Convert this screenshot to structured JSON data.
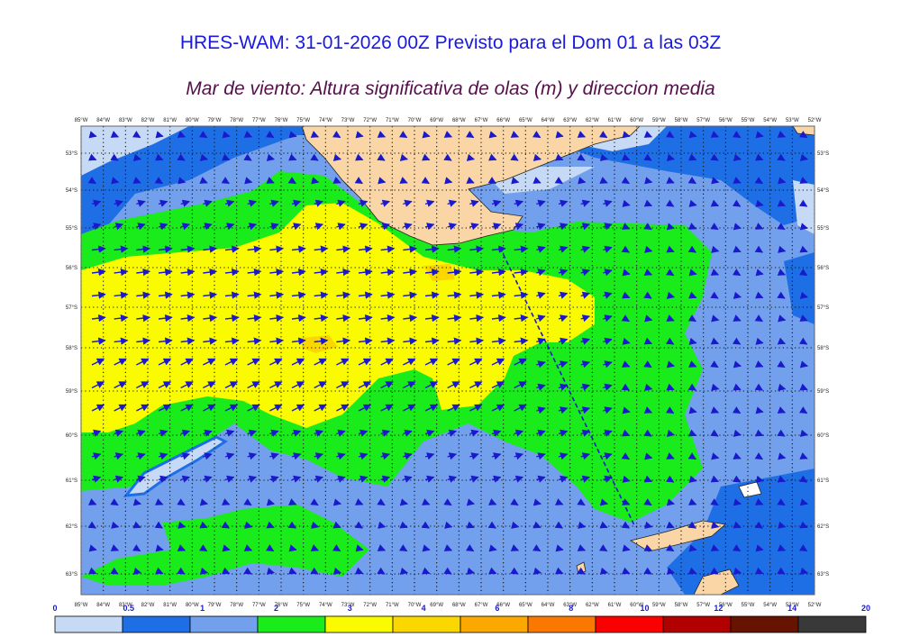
{
  "title": "HRES-WAM: 31-01-2026 00Z Previsto para el Dom 01 a las 03Z",
  "subtitle": "Mar de viento: Altura significativa de olas (m) y direccion media",
  "colors": {
    "land": "#fad5a5",
    "frame": "#666666",
    "grid": "#111111",
    "arrow": "#1a1acc",
    "track": "#1a1acc"
  },
  "lon_labels": [
    "85°W",
    "84°W",
    "83°W",
    "82°W",
    "81°W",
    "80°W",
    "79°W",
    "78°W",
    "77°W",
    "76°W",
    "75°W",
    "74°W",
    "73°W",
    "72°W",
    "71°W",
    "70°W",
    "69°W",
    "68°W",
    "67°W",
    "66°W",
    "65°W",
    "64°W",
    "63°W",
    "62°W",
    "61°W",
    "60°W",
    "59°W",
    "58°W",
    "57°W",
    "56°W",
    "55°W",
    "54°W",
    "53°W",
    "52°W"
  ],
  "lat_labels": [
    "53°S",
    "54°S",
    "55°S",
    "56°S",
    "57°S",
    "58°S",
    "59°S",
    "60°S",
    "61°S",
    "62°S",
    "63°S"
  ],
  "colorbar": {
    "ticks": [
      "0",
      "0.5",
      "1",
      "2",
      "3",
      "4",
      "6",
      "8",
      "10",
      "12",
      "14",
      "20"
    ],
    "colors": [
      "#c6daf5",
      "#1e6fe6",
      "#73a0ec",
      "#1aeb1a",
      "#fbfb00",
      "#fbd700",
      "#fba800",
      "#fb7800",
      "#fb0000",
      "#b20000",
      "#661400",
      "#393939"
    ]
  }
}
